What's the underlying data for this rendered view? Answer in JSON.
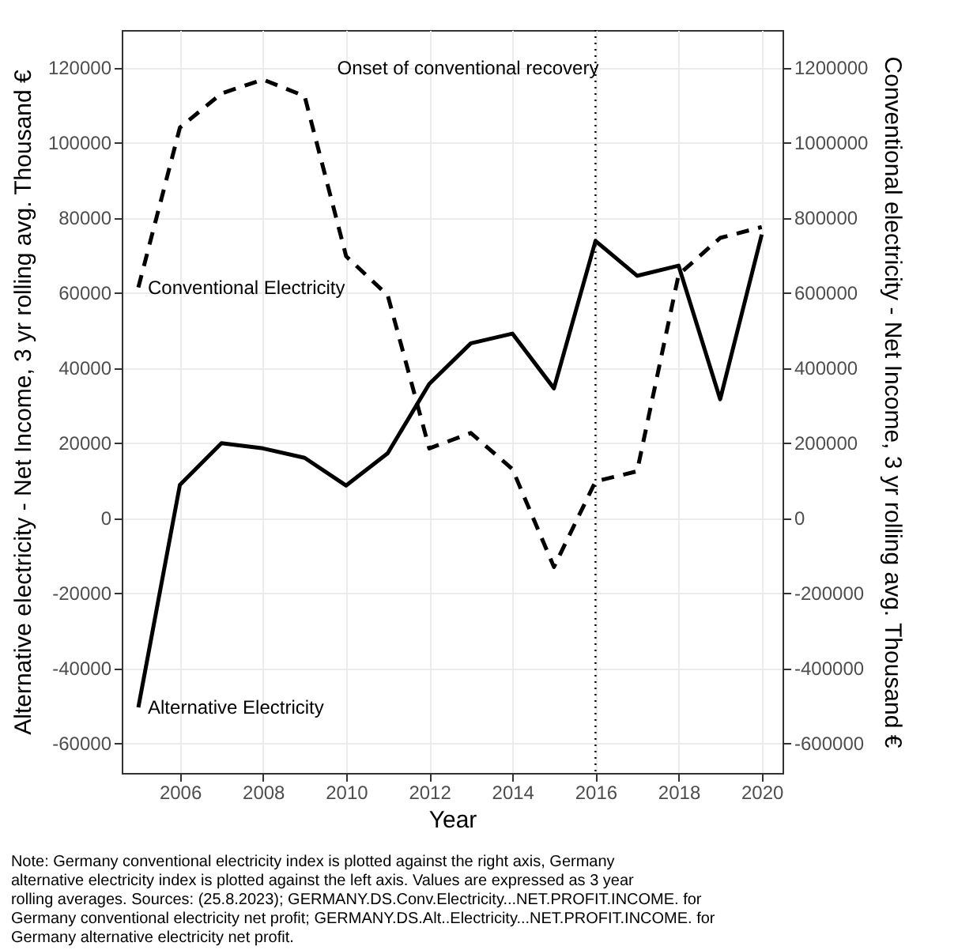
{
  "chart_data": {
    "type": "line",
    "xlabel": "Year",
    "ylabel": "Alternative electricity - Net Income, 3 yr rolling avg. Thousand €",
    "y2label": "Conventional electricity - Net Income, 3 yr rolling avg. Thousand €",
    "x": [
      2005,
      2006,
      2007,
      2008,
      2009,
      2010,
      2011,
      2012,
      2013,
      2014,
      2015,
      2016,
      2017,
      2018,
      2019,
      2020
    ],
    "series": [
      {
        "name": "Alternative Electricity",
        "color": "#000000",
        "line_style": "solid",
        "values": [
          -50500,
          8800,
          19900,
          18500,
          16000,
          8600,
          17200,
          35700,
          46500,
          49100,
          34500,
          73800,
          64500,
          67200,
          31600,
          75500
        ]
      },
      {
        "name": "Conventional Electricity",
        "color": "#000000",
        "line_style": "dashed",
        "axis": "y2",
        "values": [
          614000,
          1040000,
          1131000,
          1168000,
          1124000,
          697000,
          593000,
          185000,
          226000,
          130000,
          -131000,
          97000,
          124000,
          648000,
          746000,
          775000
        ]
      }
    ],
    "xlim": [
      2004.6,
      2020.5
    ],
    "xticks": [
      2006,
      2008,
      2010,
      2012,
      2014,
      2016,
      2018,
      2020
    ],
    "ylim": [
      -68000,
      130000
    ],
    "yticks": [
      -60000,
      -40000,
      -20000,
      0,
      20000,
      40000,
      60000,
      80000,
      100000,
      120000
    ],
    "y2lim": [
      -680000,
      1300000
    ],
    "y2ticks": [
      -600000,
      -400000,
      -200000,
      0,
      200000,
      400000,
      600000,
      800000,
      1000000,
      1200000
    ],
    "ref_lines": [
      {
        "axis": "x",
        "value": 2016,
        "label": "Onset of conventional recovery",
        "line_style": "dotted",
        "color": "#000000"
      }
    ],
    "grid": true,
    "legend": false,
    "marker": "none",
    "annotations": [
      "Note: Germany conventional electricity index is plotted against the right axis, Germany alternative electricity index is plotted against the left axis. Values are expressed as 3 year rolling averages. Sources: (25.8.2023); GERMANY.DS.Conv.Electricity...NET.PROFIT.INCOME. for Germany conventional electricity net profit; GERMANY.DS.Alt..Electricity...NET.PROFIT.INCOME. for Germany alternative electricity net profit."
    ]
  }
}
